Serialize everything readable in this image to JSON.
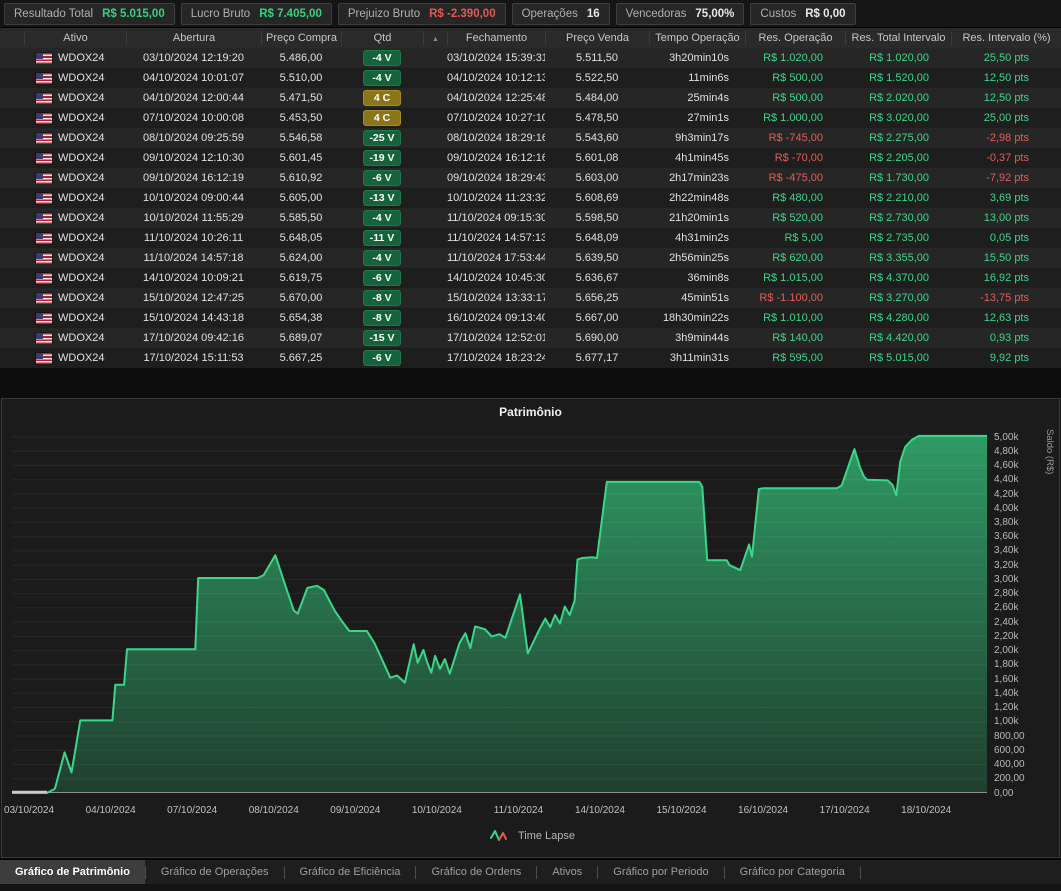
{
  "summary": {
    "items": [
      {
        "label": "Resultado Total",
        "value": "R$ 5.015,00",
        "tone": "green"
      },
      {
        "label": "Lucro Bruto",
        "value": "R$ 7.405,00",
        "tone": "green"
      },
      {
        "label": "Prejuizo Bruto",
        "value": "R$ -2.390,00",
        "tone": "red"
      },
      {
        "label": "Operações",
        "value": "16",
        "tone": "white"
      },
      {
        "label": "Vencedoras",
        "value": "75,00%",
        "tone": "white"
      },
      {
        "label": "Custos",
        "value": "R$ 0,00",
        "tone": "white"
      }
    ]
  },
  "table": {
    "columns": [
      "Ativo",
      "Abertura",
      "Preço Compra",
      "Qtd",
      "Fechamento",
      "Preço Venda",
      "Tempo Operação",
      "Res. Operação",
      "Res. Total Intervalo",
      "Res. Intervalo (%)"
    ],
    "sort_icon": "▲",
    "rows": [
      {
        "ativo": "WDOX24",
        "abertura": "03/10/2024 12:19:20",
        "preco_compra": "5.486,00",
        "qtd": "-4 V",
        "fechamento": "03/10/2024 15:39:31",
        "preco_venda": "5.511,50",
        "tempo": "3h20min10s",
        "res_op": "R$ 1.020,00",
        "res_total": "R$ 1.020,00",
        "res_int": "25,50 pts"
      },
      {
        "ativo": "WDOX24",
        "abertura": "04/10/2024 10:01:07",
        "preco_compra": "5.510,00",
        "qtd": "-4 V",
        "fechamento": "04/10/2024 10:12:13",
        "preco_venda": "5.522,50",
        "tempo": "11min6s",
        "res_op": "R$ 500,00",
        "res_total": "R$ 1.520,00",
        "res_int": "12,50 pts"
      },
      {
        "ativo": "WDOX24",
        "abertura": "04/10/2024 12:00:44",
        "preco_compra": "5.471,50",
        "qtd": "4 C",
        "fechamento": "04/10/2024 12:25:48",
        "preco_venda": "5.484,00",
        "tempo": "25min4s",
        "res_op": "R$ 500,00",
        "res_total": "R$ 2.020,00",
        "res_int": "12,50 pts"
      },
      {
        "ativo": "WDOX24",
        "abertura": "07/10/2024 10:00:08",
        "preco_compra": "5.453,50",
        "qtd": "4 C",
        "fechamento": "07/10/2024 10:27:10",
        "preco_venda": "5.478,50",
        "tempo": "27min1s",
        "res_op": "R$ 1.000,00",
        "res_total": "R$ 3.020,00",
        "res_int": "25,00 pts"
      },
      {
        "ativo": "WDOX24",
        "abertura": "08/10/2024 09:25:59",
        "preco_compra": "5.546,58",
        "qtd": "-25 V",
        "fechamento": "08/10/2024 18:29:16",
        "preco_venda": "5.543,60",
        "tempo": "9h3min17s",
        "res_op": "R$ -745,00",
        "res_total": "R$ 2.275,00",
        "res_int": "-2,98 pts"
      },
      {
        "ativo": "WDOX24",
        "abertura": "09/10/2024 12:10:30",
        "preco_compra": "5.601,45",
        "qtd": "-19 V",
        "fechamento": "09/10/2024 16:12:16",
        "preco_venda": "5.601,08",
        "tempo": "4h1min45s",
        "res_op": "R$ -70,00",
        "res_total": "R$ 2.205,00",
        "res_int": "-0,37 pts"
      },
      {
        "ativo": "WDOX24",
        "abertura": "09/10/2024 16:12:19",
        "preco_compra": "5.610,92",
        "qtd": "-6 V",
        "fechamento": "09/10/2024 18:29:43",
        "preco_venda": "5.603,00",
        "tempo": "2h17min23s",
        "res_op": "R$ -475,00",
        "res_total": "R$ 1.730,00",
        "res_int": "-7,92 pts"
      },
      {
        "ativo": "WDOX24",
        "abertura": "10/10/2024 09:00:44",
        "preco_compra": "5.605,00",
        "qtd": "-13 V",
        "fechamento": "10/10/2024 11:23:32",
        "preco_venda": "5.608,69",
        "tempo": "2h22min48s",
        "res_op": "R$ 480,00",
        "res_total": "R$ 2.210,00",
        "res_int": "3,69 pts"
      },
      {
        "ativo": "WDOX24",
        "abertura": "10/10/2024 11:55:29",
        "preco_compra": "5.585,50",
        "qtd": "-4 V",
        "fechamento": "11/10/2024 09:15:30",
        "preco_venda": "5.598,50",
        "tempo": "21h20min1s",
        "res_op": "R$ 520,00",
        "res_total": "R$ 2.730,00",
        "res_int": "13,00 pts"
      },
      {
        "ativo": "WDOX24",
        "abertura": "11/10/2024 10:26:11",
        "preco_compra": "5.648,05",
        "qtd": "-11 V",
        "fechamento": "11/10/2024 14:57:13",
        "preco_venda": "5.648,09",
        "tempo": "4h31min2s",
        "res_op": "R$ 5,00",
        "res_total": "R$ 2.735,00",
        "res_int": "0,05 pts"
      },
      {
        "ativo": "WDOX24",
        "abertura": "11/10/2024 14:57:18",
        "preco_compra": "5.624,00",
        "qtd": "-4 V",
        "fechamento": "11/10/2024 17:53:44",
        "preco_venda": "5.639,50",
        "tempo": "2h56min25s",
        "res_op": "R$ 620,00",
        "res_total": "R$ 3.355,00",
        "res_int": "15,50 pts"
      },
      {
        "ativo": "WDOX24",
        "abertura": "14/10/2024 10:09:21",
        "preco_compra": "5.619,75",
        "qtd": "-6 V",
        "fechamento": "14/10/2024 10:45:30",
        "preco_venda": "5.636,67",
        "tempo": "36min8s",
        "res_op": "R$ 1.015,00",
        "res_total": "R$ 4.370,00",
        "res_int": "16,92 pts"
      },
      {
        "ativo": "WDOX24",
        "abertura": "15/10/2024 12:47:25",
        "preco_compra": "5.670,00",
        "qtd": "-8 V",
        "fechamento": "15/10/2024 13:33:17",
        "preco_venda": "5.656,25",
        "tempo": "45min51s",
        "res_op": "R$ -1.100,00",
        "res_total": "R$ 3.270,00",
        "res_int": "-13,75 pts"
      },
      {
        "ativo": "WDOX24",
        "abertura": "15/10/2024 14:43:18",
        "preco_compra": "5.654,38",
        "qtd": "-8 V",
        "fechamento": "16/10/2024 09:13:40",
        "preco_venda": "5.667,00",
        "tempo": "18h30min22s",
        "res_op": "R$ 1.010,00",
        "res_total": "R$ 4.280,00",
        "res_int": "12,63 pts"
      },
      {
        "ativo": "WDOX24",
        "abertura": "17/10/2024 09:42:16",
        "preco_compra": "5.689,07",
        "qtd": "-15 V",
        "fechamento": "17/10/2024 12:52:01",
        "preco_venda": "5.690,00",
        "tempo": "3h9min44s",
        "res_op": "R$ 140,00",
        "res_total": "R$ 4.420,00",
        "res_int": "0,93 pts"
      },
      {
        "ativo": "WDOX24",
        "abertura": "17/10/2024 15:11:53",
        "preco_compra": "5.667,25",
        "qtd": "-6 V",
        "fechamento": "17/10/2024 18:23:24",
        "preco_venda": "5.677,17",
        "tempo": "3h11min31s",
        "res_op": "R$ 595,00",
        "res_total": "R$ 5.015,00",
        "res_int": "9,92 pts"
      }
    ]
  },
  "chart_data": {
    "type": "area",
    "title": "Patrimônio",
    "ylabel": "Saldo (R$)",
    "legend": "Time Lapse",
    "ymin": 0,
    "ymax": 5000,
    "grid": true,
    "line_color": "#3bd68a",
    "y_ticks": [
      "5,00k",
      "4,80k",
      "4,60k",
      "4,40k",
      "4,20k",
      "4,00k",
      "3,80k",
      "3,60k",
      "3,40k",
      "3,20k",
      "3,00k",
      "2,80k",
      "2,60k",
      "2,40k",
      "2,20k",
      "2,00k",
      "1,80k",
      "1,60k",
      "1,40k",
      "1,20k",
      "1,00k",
      "800,00",
      "600,00",
      "400,00",
      "200,00",
      "0,00"
    ],
    "x_ticks": [
      "03/10/2024",
      "04/10/2024",
      "07/10/2024",
      "08/10/2024",
      "09/10/2024",
      "10/10/2024",
      "11/10/2024",
      "14/10/2024",
      "15/10/2024",
      "16/10/2024",
      "17/10/2024",
      "18/10/2024"
    ],
    "trade_close_equity": [
      1020,
      1520,
      2020,
      3020,
      2275,
      2205,
      1730,
      2210,
      2730,
      2735,
      3355,
      4370,
      3270,
      4280,
      4420,
      5015
    ],
    "curve_points": [
      [
        0,
        0
      ],
      [
        0.036,
        0
      ],
      [
        0.044,
        60
      ],
      [
        0.054,
        570
      ],
      [
        0.061,
        290
      ],
      [
        0.07,
        1020
      ],
      [
        0.103,
        1020
      ],
      [
        0.106,
        1520
      ],
      [
        0.115,
        1520
      ],
      [
        0.118,
        2020
      ],
      [
        0.188,
        2020
      ],
      [
        0.191,
        3020
      ],
      [
        0.252,
        3020
      ],
      [
        0.258,
        3060
      ],
      [
        0.27,
        3340
      ],
      [
        0.28,
        2930
      ],
      [
        0.289,
        2560
      ],
      [
        0.293,
        2520
      ],
      [
        0.303,
        2880
      ],
      [
        0.313,
        2910
      ],
      [
        0.32,
        2850
      ],
      [
        0.331,
        2560
      ],
      [
        0.338,
        2420
      ],
      [
        0.346,
        2275
      ],
      [
        0.364,
        2275
      ],
      [
        0.372,
        2100
      ],
      [
        0.388,
        1620
      ],
      [
        0.395,
        1650
      ],
      [
        0.403,
        1550
      ],
      [
        0.412,
        2090
      ],
      [
        0.416,
        1830
      ],
      [
        0.422,
        2010
      ],
      [
        0.426,
        1830
      ],
      [
        0.43,
        1690
      ],
      [
        0.434,
        1925
      ],
      [
        0.439,
        1745
      ],
      [
        0.444,
        1880
      ],
      [
        0.449,
        1675
      ],
      [
        0.459,
        2105
      ],
      [
        0.465,
        2245
      ],
      [
        0.47,
        2035
      ],
      [
        0.475,
        2340
      ],
      [
        0.485,
        2300
      ],
      [
        0.492,
        2200
      ],
      [
        0.5,
        2230
      ],
      [
        0.506,
        2180
      ],
      [
        0.521,
        2790
      ],
      [
        0.529,
        1960
      ],
      [
        0.541,
        2300
      ],
      [
        0.547,
        2450
      ],
      [
        0.552,
        2330
      ],
      [
        0.557,
        2500
      ],
      [
        0.562,
        2380
      ],
      [
        0.567,
        2620
      ],
      [
        0.572,
        2500
      ],
      [
        0.577,
        2700
      ],
      [
        0.58,
        3280
      ],
      [
        0.585,
        3300
      ],
      [
        0.595,
        3310
      ],
      [
        0.6,
        3300
      ],
      [
        0.61,
        4370
      ],
      [
        0.705,
        4370
      ],
      [
        0.708,
        4300
      ],
      [
        0.713,
        3270
      ],
      [
        0.733,
        3270
      ],
      [
        0.736,
        3200
      ],
      [
        0.747,
        3130
      ],
      [
        0.756,
        3490
      ],
      [
        0.759,
        3320
      ],
      [
        0.766,
        4270
      ],
      [
        0.77,
        4280
      ],
      [
        0.846,
        4280
      ],
      [
        0.851,
        4320
      ],
      [
        0.864,
        4830
      ],
      [
        0.87,
        4560
      ],
      [
        0.874,
        4440
      ],
      [
        0.877,
        4400
      ],
      [
        0.898,
        4390
      ],
      [
        0.903,
        4330
      ],
      [
        0.907,
        4180
      ],
      [
        0.911,
        4650
      ],
      [
        0.916,
        4860
      ],
      [
        0.923,
        4960
      ],
      [
        0.93,
        5015
      ],
      [
        1,
        5015
      ]
    ]
  },
  "tabs": {
    "active": 0,
    "items": [
      "Gráfico de Patrimônio",
      "Gráfico de Operações",
      "Gráfico de Eficiência",
      "Gráfico de Ordens",
      "Ativos",
      "Gráfico por Periodo",
      "Gráfico por Categoria"
    ]
  }
}
